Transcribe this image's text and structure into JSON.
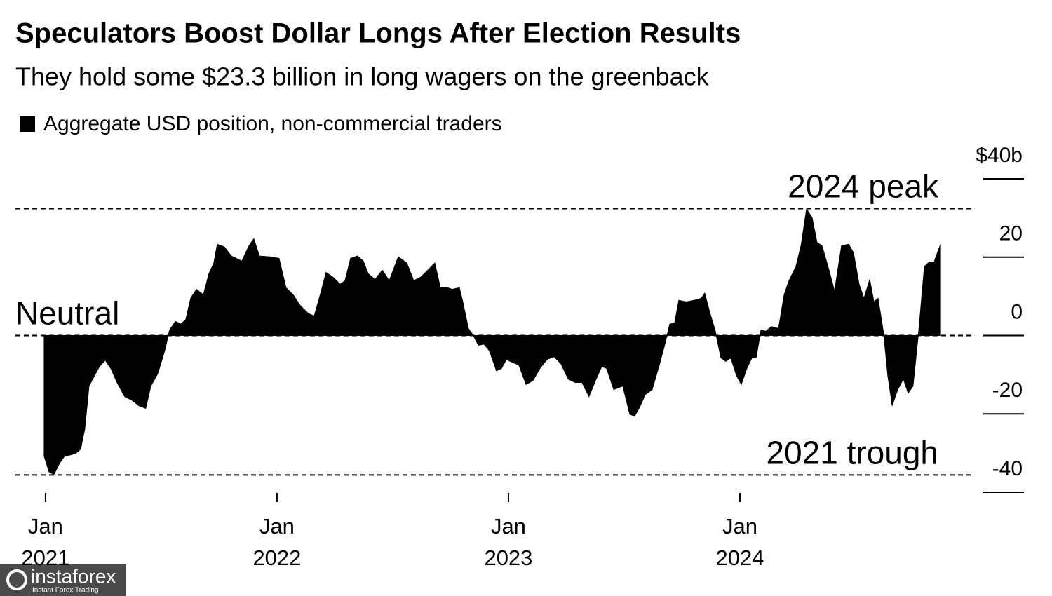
{
  "chart_data": {
    "type": "area",
    "title": "Speculators Boost Dollar Longs After Election Results",
    "subtitle": "They hold some $23.3 billion in long wagers on the greenback",
    "x": [
      2020.994,
      2021.015,
      2021.036,
      2021.061,
      2021.082,
      2021.106,
      2021.13,
      2021.152,
      2021.17,
      2021.188,
      2021.212,
      2021.233,
      2021.258,
      2021.282,
      2021.309,
      2021.342,
      2021.373,
      2021.403,
      2021.433,
      2021.455,
      2021.485,
      2021.515,
      2021.536,
      2021.561,
      2021.585,
      2021.606,
      2021.627,
      2021.652,
      2021.682,
      2021.706,
      2021.727,
      2021.742,
      2021.773,
      2021.803,
      2021.848,
      2021.879,
      2021.9,
      2021.924,
      2021.97,
      2022.009,
      2022.039,
      2022.07,
      2022.1,
      2022.136,
      2022.161,
      2022.191,
      2022.212,
      2022.242,
      2022.273,
      2022.294,
      2022.318,
      2022.348,
      2022.373,
      2022.394,
      2022.424,
      2022.455,
      2022.485,
      2022.524,
      2022.561,
      2022.591,
      2022.621,
      2022.652,
      2022.682,
      2022.706,
      2022.736,
      2022.758,
      2022.788,
      2022.803,
      2022.827,
      2022.848,
      2022.87,
      2022.894,
      2022.918,
      2022.948,
      2022.97,
      2022.991,
      2023.015,
      2023.045,
      2023.076,
      2023.106,
      2023.136,
      2023.167,
      2023.197,
      2023.227,
      2023.258,
      2023.288,
      2023.318,
      2023.348,
      2023.379,
      2023.403,
      2023.424,
      2023.455,
      2023.494,
      2023.524,
      2023.545,
      2023.567,
      2023.591,
      2023.621,
      2023.652,
      2023.676,
      2023.697,
      2023.718,
      2023.736,
      2023.767,
      2023.803,
      2023.833,
      2023.848,
      2023.87,
      2023.894,
      2023.918,
      2023.939,
      2023.961,
      2023.985,
      2024.006,
      2024.03,
      2024.052,
      2024.07,
      2024.091,
      2024.112,
      2024.136,
      2024.167,
      2024.191,
      2024.212,
      2024.242,
      2024.264,
      2024.288,
      2024.312,
      2024.333,
      2024.355,
      2024.385,
      2024.409,
      2024.439,
      2024.47,
      2024.491,
      2024.515,
      2024.536,
      2024.561,
      2024.579,
      2024.597,
      2024.621,
      2024.639,
      2024.658,
      2024.682,
      2024.706,
      2024.727,
      2024.748,
      2024.773,
      2024.797,
      2024.818,
      2024.839,
      2024.867
    ],
    "series": [
      {
        "name": "Aggregate USD position, non-commercial traders",
        "color": "#000000",
        "values": [
          -30.8,
          -34.8,
          -35.5,
          -32.6,
          -30.8,
          -30.5,
          -30.1,
          -29,
          -23.7,
          -12.9,
          -10.2,
          -7.9,
          -6.3,
          -8.4,
          -12,
          -15.6,
          -16.5,
          -17.9,
          -18.6,
          -12.9,
          -9.7,
          -3.9,
          1.4,
          3.6,
          2.9,
          4.1,
          9.5,
          11.8,
          10.4,
          15.8,
          18.5,
          23.3,
          22.6,
          20.3,
          19,
          22.9,
          24.7,
          20.3,
          20.1,
          19.7,
          12.2,
          10.4,
          7.7,
          5.6,
          5,
          11.3,
          16.1,
          14.9,
          13.1,
          14,
          19.7,
          20.3,
          19,
          15.8,
          14.3,
          16.7,
          14,
          20.1,
          18.5,
          14,
          14.9,
          16.7,
          18.5,
          12.2,
          12.2,
          11.8,
          12.2,
          8.6,
          1.8,
          0,
          -2.5,
          -2.2,
          -3.9,
          -9,
          -8.4,
          -6.1,
          -6.8,
          -7.5,
          -12.5,
          -11.5,
          -8.4,
          -6.1,
          -5.4,
          -7.2,
          -11.1,
          -12,
          -12,
          -15.6,
          -11.1,
          -7.9,
          -8.4,
          -13.8,
          -12.9,
          -20.1,
          -20.6,
          -18.3,
          -15.1,
          -13.8,
          -7.5,
          -2.2,
          2.9,
          3.2,
          9,
          8.6,
          9,
          9.5,
          10.8,
          5.9,
          1.1,
          -5.7,
          -6.6,
          -5.7,
          -10.2,
          -12.5,
          -8.4,
          -5.7,
          -5.7,
          1.4,
          1.1,
          2.3,
          1.8,
          10.4,
          14,
          17.6,
          22.9,
          32.3,
          30.1,
          23.8,
          22.9,
          16.7,
          11.3,
          22.9,
          23.3,
          21.1,
          13.1,
          9.5,
          14.3,
          8.6,
          9.5,
          0.5,
          -10.2,
          -17.9,
          -13.8,
          -11.1,
          -14.7,
          -12.9,
          1.4,
          17.6,
          18.8,
          18.8,
          23.3
        ]
      }
    ],
    "reference_lines": [
      {
        "label": "2024 peak",
        "value": 32.4,
        "align": "right"
      },
      {
        "label": "Neutral",
        "value": 0,
        "align": "left"
      },
      {
        "label": "2021 trough",
        "value": -35.6,
        "align": "right"
      }
    ],
    "xlim": [
      2020.87,
      2025.0
    ],
    "xticks": [
      {
        "value": 2021,
        "label": "Jan 2021"
      },
      {
        "value": 2022,
        "label": "Jan 2022"
      },
      {
        "value": 2023,
        "label": "Jan 2023"
      },
      {
        "value": 2024,
        "label": "Jan 2024"
      }
    ],
    "ylim": [
      -40,
      40
    ],
    "yticks": [
      {
        "value": 40,
        "label": "$40b"
      },
      20,
      0,
      -20,
      -40
    ],
    "legend": "top-left"
  },
  "watermark": {
    "name": "instaforex",
    "tagline": "Instant Forex Trading"
  }
}
